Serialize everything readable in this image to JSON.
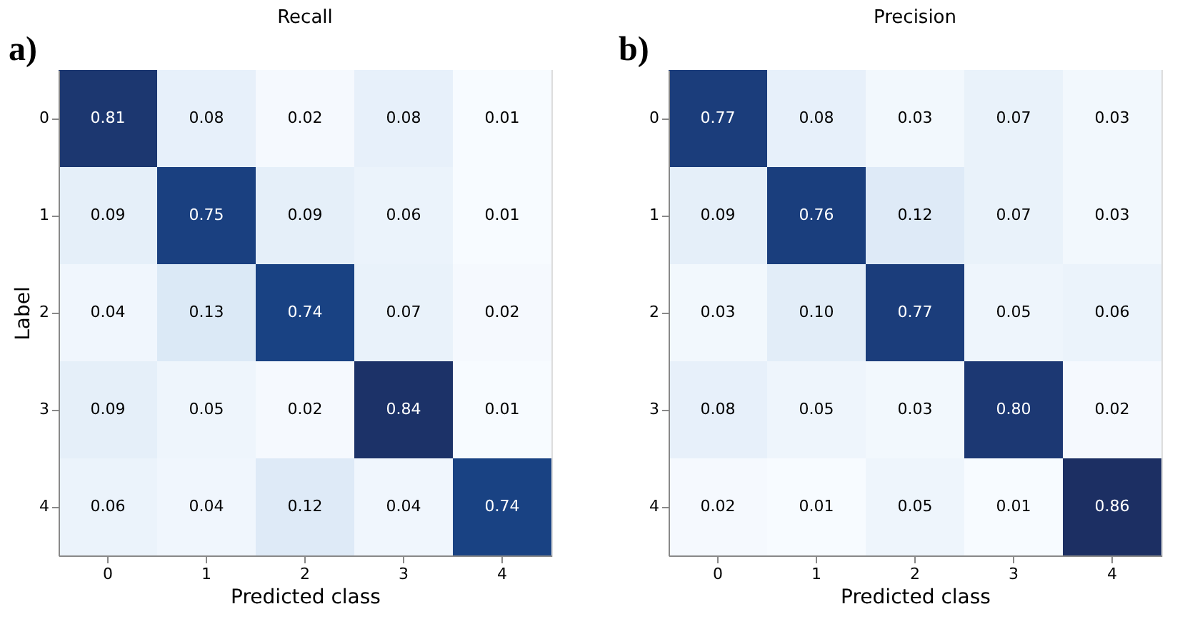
{
  "chart_data": [
    {
      "type": "heatmap",
      "title": "Recall",
      "xlabel": "Predicted class",
      "ylabel": "Label",
      "annotations": [
        "a)"
      ],
      "data_labels": true,
      "grid": false,
      "categories": [
        "0",
        "1",
        "2",
        "3",
        "4"
      ],
      "y_categories": [
        "0",
        "1",
        "2",
        "3",
        "4"
      ],
      "cells": [
        [
          0.81,
          0.08,
          0.02,
          0.08,
          0.01
        ],
        [
          0.09,
          0.75,
          0.09,
          0.06,
          0.01
        ],
        [
          0.04,
          0.13,
          0.74,
          0.07,
          0.02
        ],
        [
          0.09,
          0.05,
          0.02,
          0.84,
          0.01
        ],
        [
          0.06,
          0.04,
          0.12,
          0.04,
          0.74
        ]
      ],
      "cell_labels": [
        [
          "0.81",
          "0.08",
          "0.02",
          "0.08",
          "0.01"
        ],
        [
          "0.09",
          "0.75",
          "0.09",
          "0.06",
          "0.01"
        ],
        [
          "0.04",
          "0.13",
          "0.74",
          "0.07",
          "0.02"
        ],
        [
          "0.09",
          "0.05",
          "0.02",
          "0.84",
          "0.01"
        ],
        [
          "0.06",
          "0.04",
          "0.12",
          "0.04",
          "0.74"
        ]
      ]
    },
    {
      "type": "heatmap",
      "title": "Precision",
      "xlabel": "Predicted class",
      "annotations": [
        "b)"
      ],
      "data_labels": true,
      "grid": false,
      "categories": [
        "0",
        "1",
        "2",
        "3",
        "4"
      ],
      "y_categories": [
        "0",
        "1",
        "2",
        "3",
        "4"
      ],
      "cells": [
        [
          0.77,
          0.08,
          0.03,
          0.07,
          0.03
        ],
        [
          0.09,
          0.76,
          0.12,
          0.07,
          0.03
        ],
        [
          0.03,
          0.1,
          0.77,
          0.05,
          0.06
        ],
        [
          0.08,
          0.05,
          0.03,
          0.8,
          0.02
        ],
        [
          0.02,
          0.01,
          0.05,
          0.01,
          0.86
        ]
      ],
      "cell_labels": [
        [
          "0.77",
          "0.08",
          "0.03",
          "0.07",
          "0.03"
        ],
        [
          "0.09",
          "0.76",
          "0.12",
          "0.07",
          "0.03"
        ],
        [
          "0.03",
          "0.10",
          "0.77",
          "0.05",
          "0.06"
        ],
        [
          "0.08",
          "0.05",
          "0.03",
          "0.80",
          "0.02"
        ],
        [
          "0.02",
          "0.01",
          "0.05",
          "0.01",
          "0.86"
        ]
      ]
    }
  ]
}
